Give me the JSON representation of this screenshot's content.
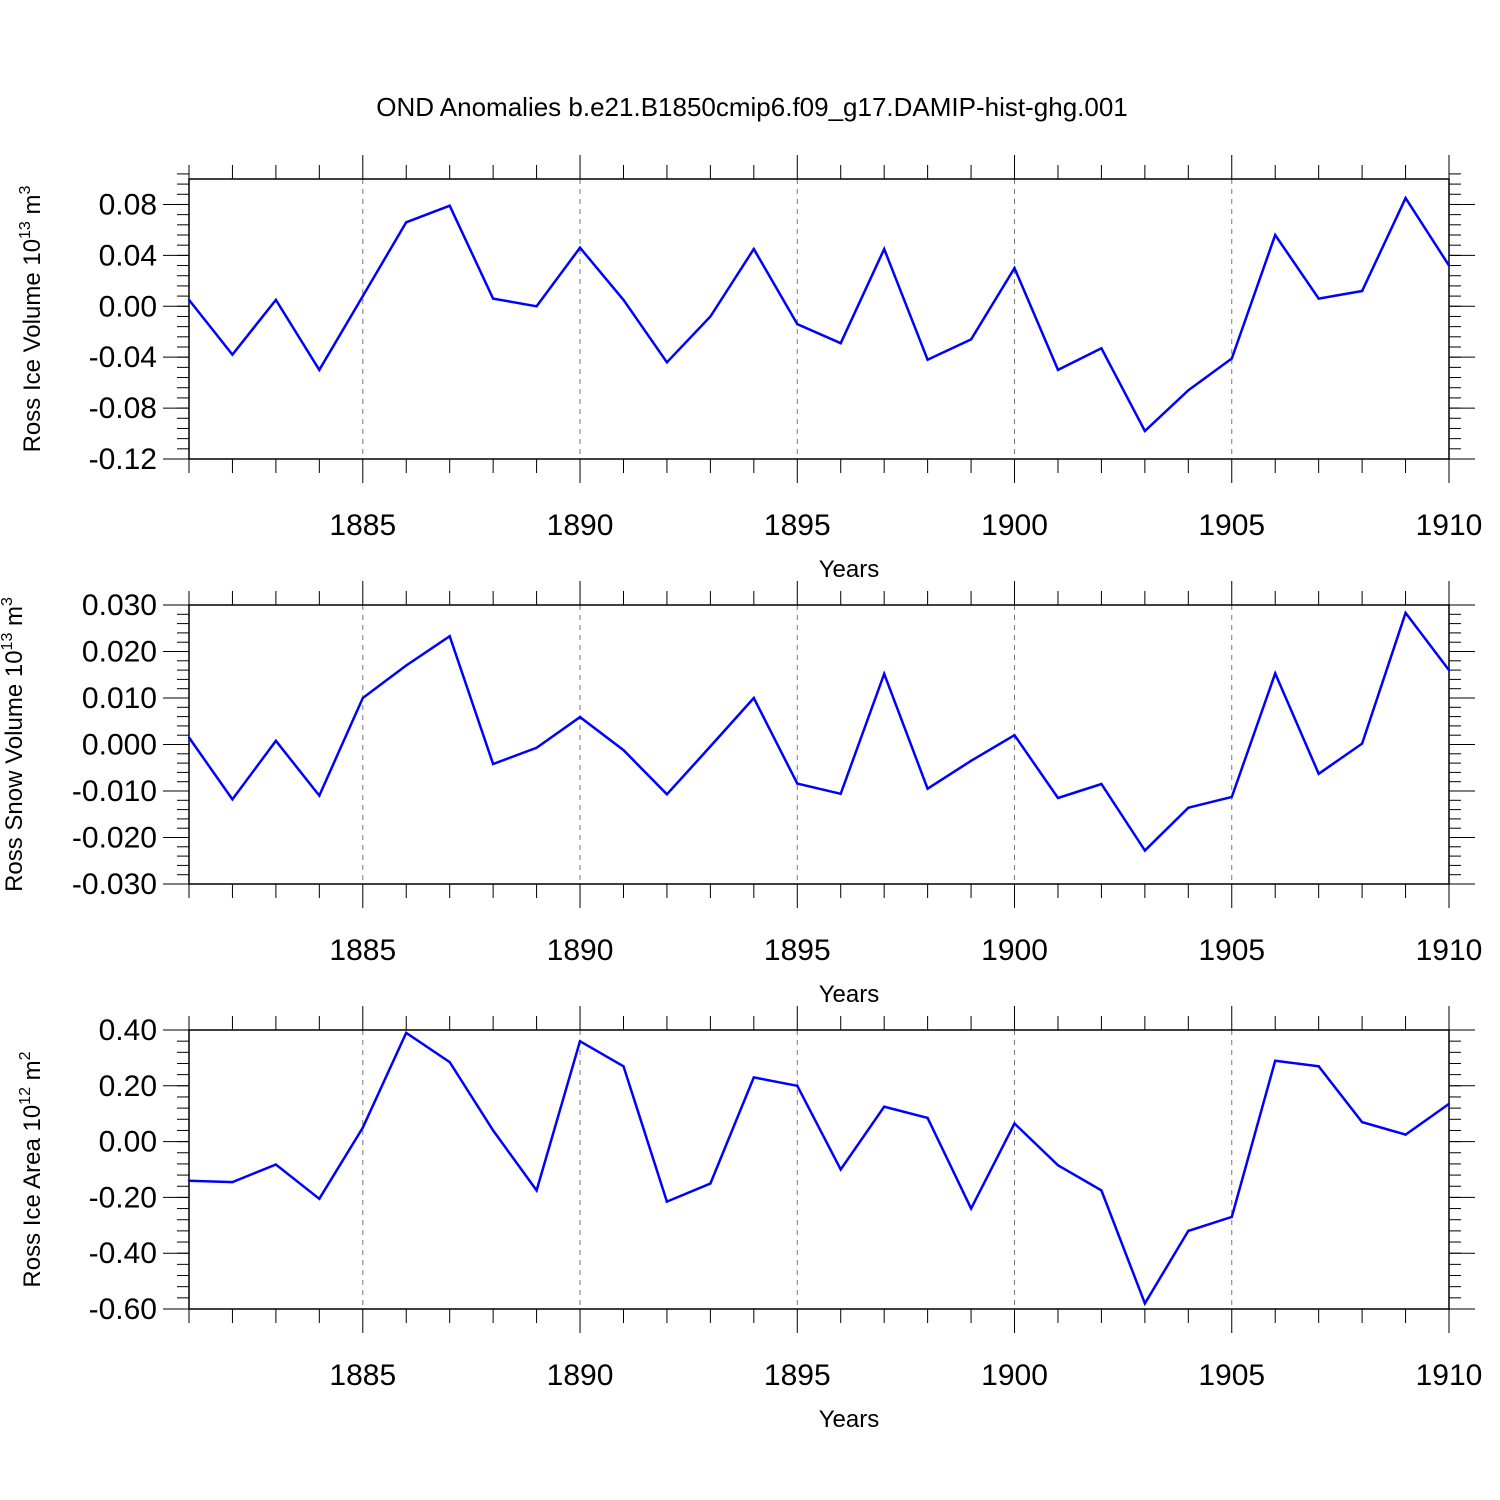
{
  "figure": {
    "title": "OND Anomalies b.e21.B1850cmip6.f09_g17.DAMIP-hist-ghg.001"
  },
  "colors": {
    "series": "#0000ff",
    "axis": "#000000",
    "grid": "#777777",
    "background": "#ffffff"
  },
  "chart_data": [
    {
      "type": "line",
      "title": "OND Anomalies b.e21.B1850cmip6.f09_g17.DAMIP-hist-ghg.001",
      "xlabel": "Years",
      "ylabel": {
        "main": "Ross Ice Volume 10",
        "exp": "13",
        "unit": " m",
        "unit_exp": "3"
      },
      "xlim": [
        1881,
        1910
      ],
      "ylim": [
        -0.12,
        0.1
      ],
      "xticks": [
        1885,
        1890,
        1895,
        1900,
        1905,
        1910
      ],
      "xtick_labels": [
        "1885",
        "1890",
        "1895",
        "1900",
        "1905",
        "1910"
      ],
      "yticks": [
        0.08,
        0.04,
        0.0,
        -0.04,
        -0.08,
        -0.12
      ],
      "ytick_labels": [
        "0.08",
        "0.04",
        "0.00",
        "-0.04",
        "-0.08",
        "-0.12"
      ],
      "y_minor_step": 0.008,
      "grid": "vertical dashed at major x ticks",
      "x": [
        1881,
        1882,
        1883,
        1884,
        1885,
        1886,
        1887,
        1888,
        1889,
        1890,
        1891,
        1892,
        1893,
        1894,
        1895,
        1896,
        1897,
        1898,
        1899,
        1900,
        1901,
        1902,
        1903,
        1904,
        1905,
        1906,
        1907,
        1908,
        1909,
        1910
      ],
      "series": [
        {
          "values": [
            0.005,
            -0.038,
            0.005,
            -0.05,
            0.008,
            0.066,
            0.079,
            0.006,
            0.0,
            0.046,
            0.005,
            -0.044,
            -0.008,
            0.045,
            -0.014,
            -0.029,
            0.045,
            -0.042,
            -0.026,
            0.03,
            -0.05,
            -0.033,
            -0.098,
            -0.066,
            -0.041,
            0.056,
            0.006,
            0.012,
            0.085,
            0.032
          ]
        }
      ]
    },
    {
      "type": "line",
      "xlabel": "Years",
      "ylabel": {
        "main": "Ross Snow Volume 10",
        "exp": "13",
        "unit": " m",
        "unit_exp": "3"
      },
      "xlim": [
        1881,
        1910
      ],
      "ylim": [
        -0.03,
        0.03
      ],
      "xticks": [
        1885,
        1890,
        1895,
        1900,
        1905,
        1910
      ],
      "xtick_labels": [
        "1885",
        "1890",
        "1895",
        "1900",
        "1905",
        "1910"
      ],
      "yticks": [
        0.03,
        0.02,
        0.01,
        0.0,
        -0.01,
        -0.02,
        -0.03
      ],
      "ytick_labels": [
        "0.030",
        "0.020",
        "0.010",
        "0.000",
        "-0.010",
        "-0.020",
        "-0.030"
      ],
      "y_minor_step": 0.002,
      "grid": "vertical dashed at major x ticks",
      "x": [
        1881,
        1882,
        1883,
        1884,
        1885,
        1886,
        1887,
        1888,
        1889,
        1890,
        1891,
        1892,
        1893,
        1894,
        1895,
        1896,
        1897,
        1898,
        1899,
        1900,
        1901,
        1902,
        1903,
        1904,
        1905,
        1906,
        1907,
        1908,
        1909,
        1910
      ],
      "series": [
        {
          "values": [
            0.0015,
            -0.0118,
            0.0008,
            -0.011,
            0.01,
            0.017,
            0.0233,
            -0.0042,
            -0.0007,
            0.0059,
            -0.0012,
            -0.0107,
            -0.0004,
            0.01,
            -0.0084,
            -0.0106,
            0.0152,
            -0.0095,
            -0.0035,
            0.002,
            -0.0115,
            -0.0085,
            -0.0228,
            -0.0136,
            -0.0113,
            0.0153,
            -0.0063,
            0.0002,
            0.0283,
            0.016
          ]
        }
      ]
    },
    {
      "type": "line",
      "xlabel": "Years",
      "ylabel": {
        "main": "Ross Ice Area 10",
        "exp": "12",
        "unit": " m",
        "unit_exp": "2"
      },
      "xlim": [
        1881,
        1910
      ],
      "ylim": [
        -0.6,
        0.4
      ],
      "xticks": [
        1885,
        1890,
        1895,
        1900,
        1905,
        1910
      ],
      "xtick_labels": [
        "1885",
        "1890",
        "1895",
        "1900",
        "1905",
        "1910"
      ],
      "yticks": [
        0.4,
        0.2,
        0.0,
        -0.2,
        -0.4,
        -0.6
      ],
      "ytick_labels": [
        "0.40",
        "0.20",
        "0.00",
        "-0.20",
        "-0.40",
        "-0.60"
      ],
      "y_minor_step": 0.04,
      "grid": "vertical dashed at major x ticks",
      "x": [
        1881,
        1882,
        1883,
        1884,
        1885,
        1886,
        1887,
        1888,
        1889,
        1890,
        1891,
        1892,
        1893,
        1894,
        1895,
        1896,
        1897,
        1898,
        1899,
        1900,
        1901,
        1902,
        1903,
        1904,
        1905,
        1906,
        1907,
        1908,
        1909,
        1910
      ],
      "series": [
        {
          "values": [
            -0.14,
            -0.145,
            -0.082,
            -0.205,
            0.05,
            0.39,
            0.285,
            0.04,
            -0.175,
            0.36,
            0.27,
            -0.215,
            -0.15,
            0.23,
            0.2,
            -0.1,
            0.125,
            0.085,
            -0.24,
            0.065,
            -0.085,
            -0.175,
            -0.58,
            -0.32,
            -0.27,
            0.29,
            0.27,
            0.07,
            0.025,
            0.135
          ]
        }
      ]
    }
  ]
}
